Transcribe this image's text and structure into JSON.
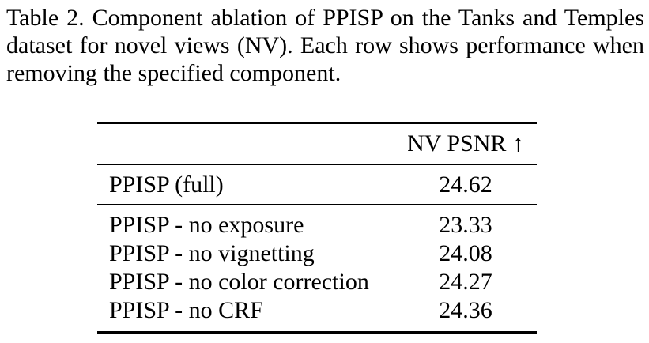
{
  "caption": {
    "lines": [
      "Table 2. Component ablation of PPISP on the Tanks and Temples",
      "dataset for novel views (NV). Each row shows performance when",
      "removing the specified component."
    ]
  },
  "table": {
    "header": {
      "label": "",
      "metric": "NV PSNR ↑"
    },
    "full_row": {
      "label": "PPISP (full)",
      "value": "24.62"
    },
    "ablation_rows": [
      {
        "label": "PPISP - no exposure",
        "value": "23.33"
      },
      {
        "label": "PPISP - no vignetting",
        "value": "24.08"
      },
      {
        "label": "PPISP - no color correction",
        "value": "24.27"
      },
      {
        "label": "PPISP - no CRF",
        "value": "24.36"
      }
    ]
  },
  "colors": {
    "text": "#000000",
    "background": "#ffffff",
    "rule": "#000000"
  }
}
